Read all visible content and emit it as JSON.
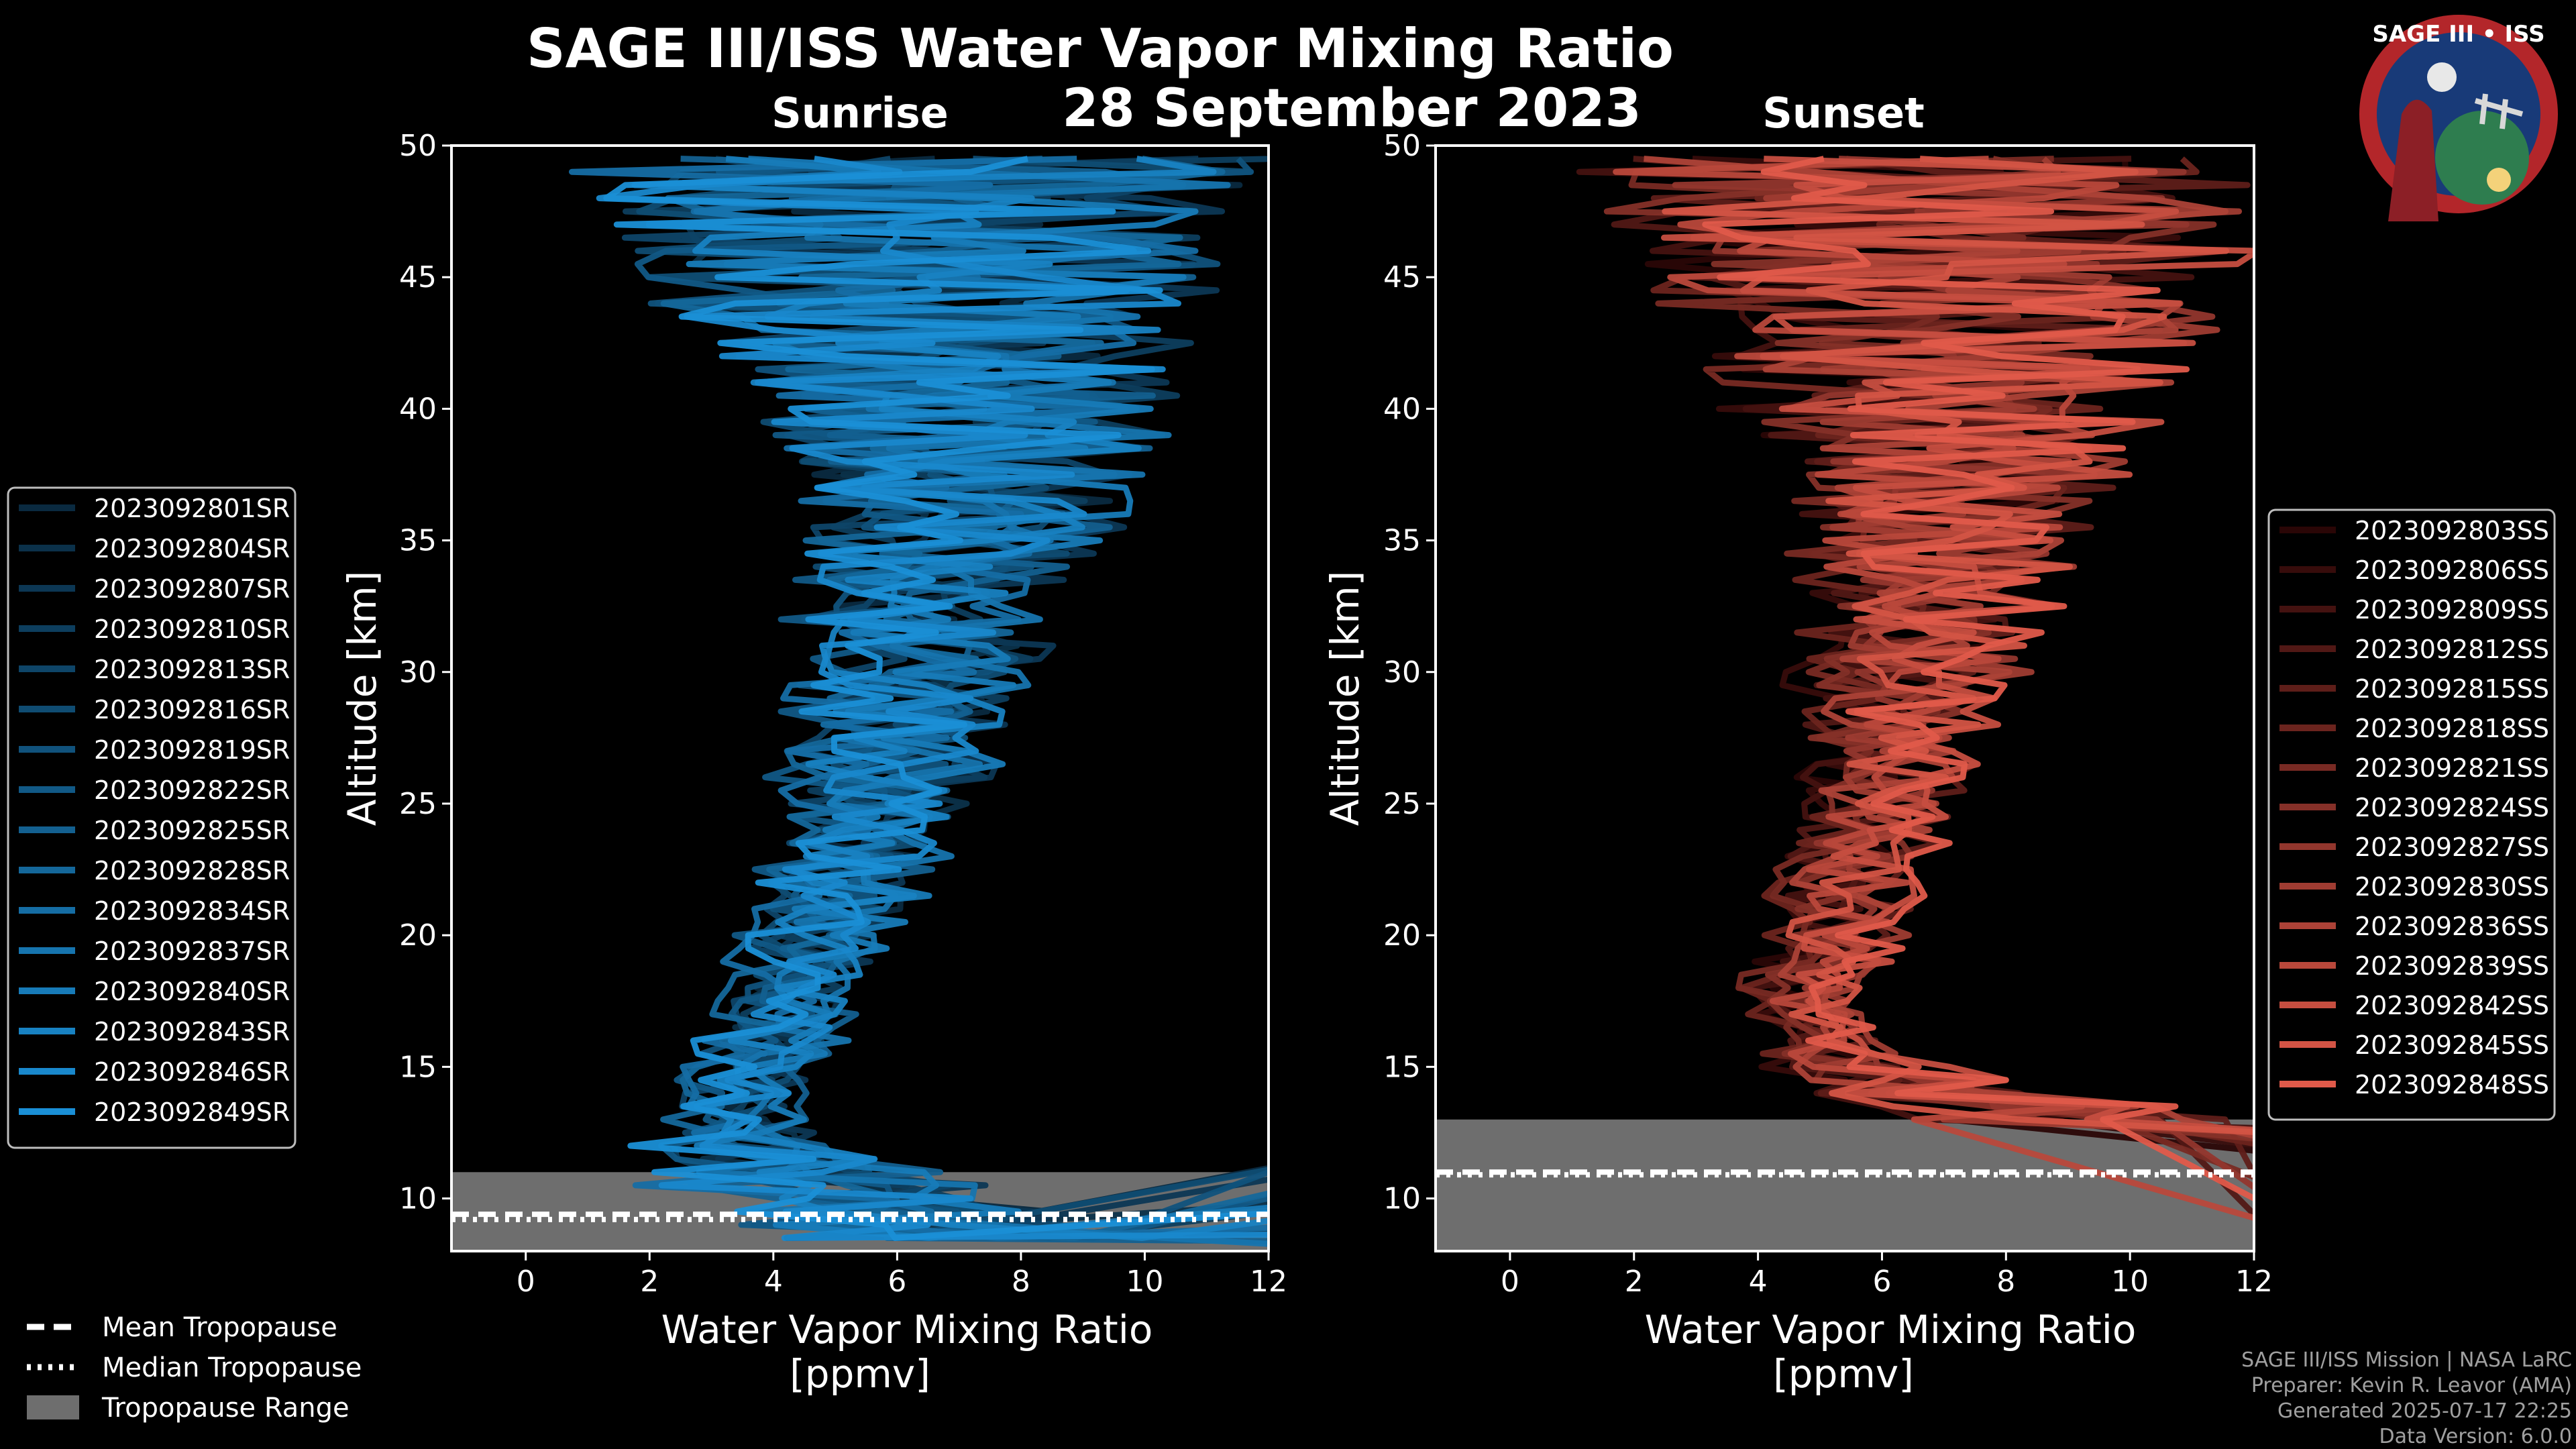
{
  "title": "SAGE III/ISS Water Vapor Mixing Ratio",
  "date": "28 September 2023",
  "logo": {
    "text": "SAGE III • ISS"
  },
  "footer": [
    "SAGE III/ISS Mission | NASA LaRC",
    "Preparer: Kevin R. Leavor (AMA)",
    "Generated 2025-07-17 22:25",
    "Data Version: 6.0.0"
  ],
  "tropopause_legend": [
    {
      "label": "Mean Tropopause",
      "style": "dashed"
    },
    {
      "label": "Median Tropopause",
      "style": "dotted"
    },
    {
      "label": "Tropopause Range",
      "style": "patch"
    }
  ],
  "chart_data": [
    {
      "type": "line",
      "title": "Sunrise",
      "xlabel": "Water Vapor Mixing Ratio",
      "xlabel_unit": "[ppmv]",
      "ylabel": "Altitude [km]",
      "xlim": [
        -1.2,
        12
      ],
      "ylim": [
        8,
        50
      ],
      "xticks": [
        0,
        2,
        4,
        6,
        8,
        10,
        12
      ],
      "yticks": [
        10,
        15,
        20,
        25,
        30,
        35,
        40,
        45,
        50
      ],
      "color_dark": "#0a2a40",
      "color_light": "#1a8fd6",
      "tropopause": {
        "mean_km": 9.4,
        "median_km": 9.2,
        "range_km": [
          8.0,
          11.0
        ]
      },
      "series": [
        "2023092801SR",
        "2023092804SR",
        "2023092807SR",
        "2023092810SR",
        "2023092813SR",
        "2023092816SR",
        "2023092819SR",
        "2023092822SR",
        "2023092825SR",
        "2023092828SR",
        "2023092834SR",
        "2023092837SR",
        "2023092840SR",
        "2023092843SR",
        "2023092846SR",
        "2023092849SR"
      ],
      "profile": {
        "alt": [
          8.5,
          9.5,
          10.5,
          11.5,
          12.5,
          13.5,
          15,
          17,
          18.5,
          20,
          22,
          25,
          28,
          31,
          34,
          37,
          40,
          43,
          46,
          49.5
        ],
        "mean": [
          7.0,
          5.5,
          4.5,
          3.6,
          3.2,
          3.3,
          3.6,
          4.1,
          4.4,
          4.7,
          5.1,
          5.6,
          6.0,
          6.3,
          6.6,
          7.1,
          7.0,
          6.5,
          6.5,
          6.2
        ],
        "spread": [
          3.0,
          2.8,
          2.5,
          2.0,
          1.0,
          0.8,
          0.8,
          0.9,
          1.0,
          1.1,
          1.2,
          1.4,
          1.6,
          1.8,
          2.1,
          2.6,
          3.4,
          4.2,
          5.0,
          5.8
        ]
      }
    },
    {
      "type": "line",
      "title": "Sunset",
      "xlabel": "Water Vapor Mixing Ratio",
      "xlabel_unit": "[ppmv]",
      "ylabel": "Altitude [km]",
      "xlim": [
        -1.2,
        12
      ],
      "ylim": [
        8,
        50
      ],
      "xticks": [
        0,
        2,
        4,
        6,
        8,
        10,
        12
      ],
      "yticks": [
        10,
        15,
        20,
        25,
        30,
        35,
        40,
        45,
        50
      ],
      "color_dark": "#2a0606",
      "color_light": "#e05a4a",
      "tropopause": {
        "mean_km": 11.0,
        "median_km": 10.9,
        "range_km": [
          8.0,
          13.0
        ]
      },
      "series": [
        "2023092803SS",
        "2023092806SS",
        "2023092809SS",
        "2023092812SS",
        "2023092815SS",
        "2023092818SS",
        "2023092821SS",
        "2023092824SS",
        "2023092827SS",
        "2023092830SS",
        "2023092836SS",
        "2023092839SS",
        "2023092842SS",
        "2023092845SS",
        "2023092848SS"
      ],
      "profile": {
        "alt": [
          13.0,
          14.0,
          15.5,
          17,
          18.5,
          20,
          22,
          25,
          28,
          31,
          34,
          37,
          40,
          43,
          46,
          49.5
        ],
        "mean": [
          9.0,
          6.5,
          5.0,
          4.7,
          4.7,
          5.0,
          5.3,
          5.7,
          6.1,
          6.5,
          6.8,
          7.0,
          7.0,
          6.9,
          6.8,
          6.5
        ],
        "spread": [
          3.0,
          2.0,
          0.7,
          0.6,
          0.8,
          0.9,
          1.0,
          1.1,
          1.3,
          1.6,
          2.0,
          2.5,
          3.2,
          4.0,
          4.8,
          5.6
        ]
      }
    }
  ]
}
